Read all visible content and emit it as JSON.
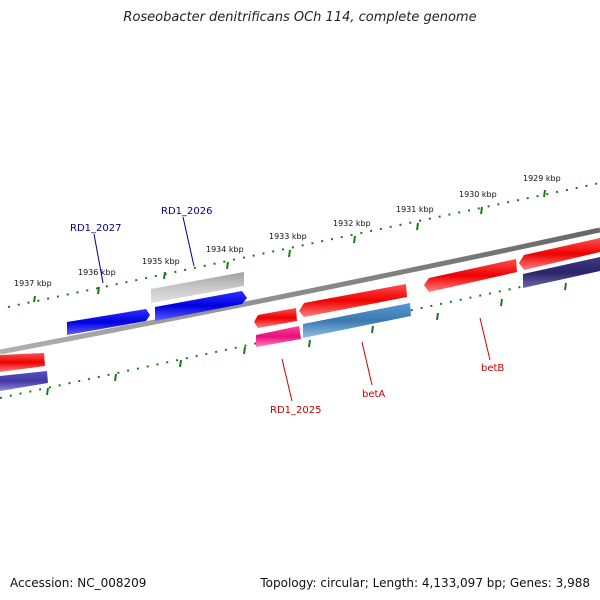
{
  "title": "Roseobacter denitrificans OCh 114, complete genome",
  "footer": {
    "accession": "Accession: NC_008209",
    "summary": "Topology: circular; Length: 4,133,097 bp; Genes: 3,988"
  },
  "colors": {
    "backbone": "#808080",
    "ticks": "#1a7a1a",
    "label_blue": "#00008b",
    "label_red": "#cc0000"
  },
  "ticks": [
    {
      "label": "1937 kbp"
    },
    {
      "label": "1936 kbp"
    },
    {
      "label": "1935 kbp"
    },
    {
      "label": "1934 kbp"
    },
    {
      "label": "1933 kbp"
    },
    {
      "label": "1932 kbp"
    },
    {
      "label": "1931 kbp"
    },
    {
      "label": "1930 kbp"
    },
    {
      "label": "1929 kbp"
    }
  ],
  "genes": [
    {
      "label": "RD1_2027",
      "color": "#0000ff"
    },
    {
      "label": "RD1_2026",
      "color": "#0000ff"
    },
    {
      "label": "RD1_2025",
      "color": "#ff1493"
    },
    {
      "label": "betA",
      "color": "#4682b4"
    },
    {
      "label": "betB",
      "color": "#ff0000"
    }
  ]
}
